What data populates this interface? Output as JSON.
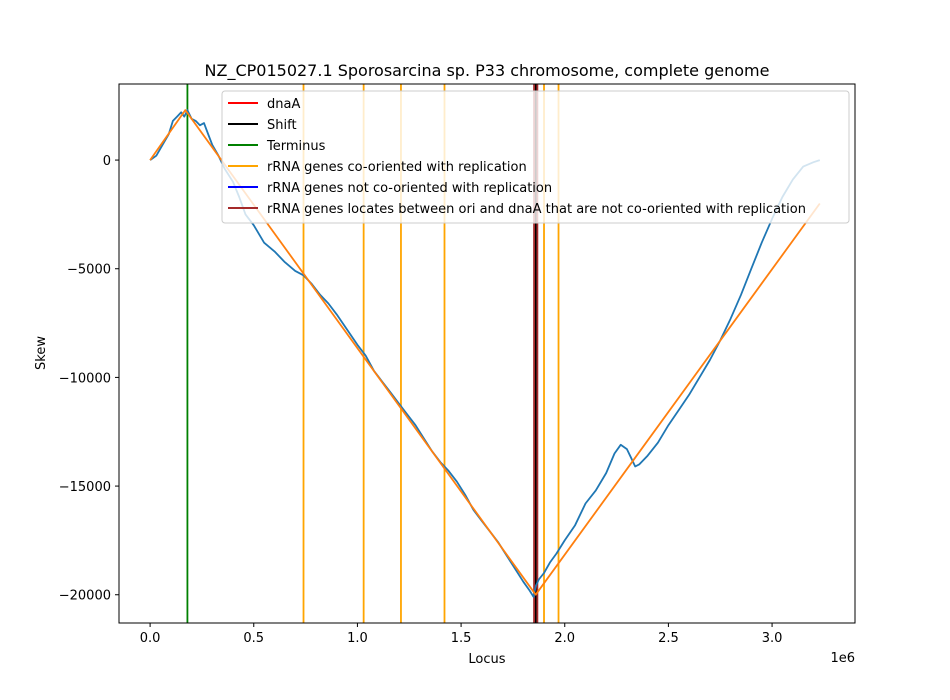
{
  "chart_data": {
    "type": "line",
    "title": "NZ_CP015027.1 Sporosarcina sp. P33 chromosome, complete genome",
    "xlabel": "Locus",
    "ylabel": "Skew",
    "x_offset_label": "1e6",
    "xlim": [
      -150000,
      3400000
    ],
    "ylim": [
      -21300,
      3500
    ],
    "x_ticks": [
      {
        "value": 0,
        "label": "0.0"
      },
      {
        "value": 500000,
        "label": "0.5"
      },
      {
        "value": 1000000,
        "label": "1.0"
      },
      {
        "value": 1500000,
        "label": "1.5"
      },
      {
        "value": 2000000,
        "label": "2.0"
      },
      {
        "value": 2500000,
        "label": "2.5"
      },
      {
        "value": 3000000,
        "label": "3.0"
      }
    ],
    "y_ticks": [
      {
        "value": 0,
        "label": "0"
      },
      {
        "value": -5000,
        "label": "−5000"
      },
      {
        "value": -10000,
        "label": "−10000"
      },
      {
        "value": -15000,
        "label": "−15000"
      },
      {
        "value": -20000,
        "label": "−20000"
      }
    ],
    "legend": {
      "placement": "top-right",
      "entries": [
        {
          "label": "dnaA",
          "color": "#ff0000"
        },
        {
          "label": "Shift",
          "color": "#000000"
        },
        {
          "label": "Terminus",
          "color": "#008000"
        },
        {
          "label": "rRNA genes co-oriented with replication",
          "color": "#ffa500"
        },
        {
          "label": "rRNA genes not co-oriented with replication",
          "color": "#0000ff"
        },
        {
          "label": "rRNA genes locates between ori and dnaA that are not co-oriented with replication",
          "color": "#a52a2a"
        }
      ]
    },
    "vlines": [
      {
        "x": 180000,
        "color": "#008000"
      },
      {
        "x": 740000,
        "color": "#ffa500"
      },
      {
        "x": 1030000,
        "color": "#ffa500"
      },
      {
        "x": 1210000,
        "color": "#ffa500"
      },
      {
        "x": 1420000,
        "color": "#ffa500"
      },
      {
        "x": 1860000,
        "color": "#ff0000"
      },
      {
        "x": 1860000,
        "color": "#000000"
      },
      {
        "x": 1852000,
        "color": "#a52a2a"
      },
      {
        "x": 1868000,
        "color": "#a52a2a"
      },
      {
        "x": 1900000,
        "color": "#ffa500"
      },
      {
        "x": 1970000,
        "color": "#ffa500"
      }
    ],
    "series": [
      {
        "color": "#1f77b4",
        "x": [
          0,
          30000,
          60000,
          90000,
          110000,
          130000,
          150000,
          165000,
          180000,
          200000,
          220000,
          240000,
          260000,
          280000,
          300000,
          330000,
          360000,
          400000,
          430000,
          460000,
          500000,
          550000,
          600000,
          650000,
          700000,
          740000,
          780000,
          820000,
          860000,
          900000,
          950000,
          1000000,
          1040000,
          1080000,
          1120000,
          1160000,
          1200000,
          1240000,
          1280000,
          1320000,
          1360000,
          1400000,
          1440000,
          1480000,
          1520000,
          1560000,
          1600000,
          1640000,
          1680000,
          1720000,
          1760000,
          1800000,
          1830000,
          1850000,
          1860000,
          1875000,
          1900000,
          1930000,
          1960000,
          2000000,
          2050000,
          2100000,
          2150000,
          2200000,
          2240000,
          2270000,
          2300000,
          2320000,
          2340000,
          2360000,
          2400000,
          2450000,
          2500000,
          2550000,
          2600000,
          2650000,
          2700000,
          2750000,
          2800000,
          2850000,
          2900000,
          2950000,
          3000000,
          3050000,
          3100000,
          3150000,
          3200000,
          3230000
        ],
        "y": [
          0,
          200,
          700,
          1200,
          1800,
          2000,
          2200,
          2000,
          2300,
          1900,
          1800,
          1600,
          1700,
          1200,
          700,
          200,
          -400,
          -1000,
          -1700,
          -2500,
          -3000,
          -3800,
          -4200,
          -4700,
          -5100,
          -5300,
          -5700,
          -6200,
          -6600,
          -7100,
          -7800,
          -8500,
          -9000,
          -9700,
          -10200,
          -10700,
          -11200,
          -11700,
          -12200,
          -12800,
          -13400,
          -13900,
          -14300,
          -14800,
          -15400,
          -16100,
          -16600,
          -17100,
          -17600,
          -18200,
          -18800,
          -19400,
          -19800,
          -20100,
          -19600,
          -19300,
          -19000,
          -18500,
          -18100,
          -17500,
          -16800,
          -15800,
          -15200,
          -14400,
          -13500,
          -13100,
          -13300,
          -13700,
          -14100,
          -14000,
          -13600,
          -13000,
          -12200,
          -11500,
          -10800,
          -10000,
          -9200,
          -8300,
          -7300,
          -6200,
          -5000,
          -3800,
          -2700,
          -1700,
          -900,
          -300,
          -100,
          0
        ]
      },
      {
        "color": "#ff7f0e",
        "x": [
          0,
          170000,
          1860000,
          3230000
        ],
        "y": [
          0,
          2300,
          -20000,
          -2000
        ]
      }
    ]
  }
}
